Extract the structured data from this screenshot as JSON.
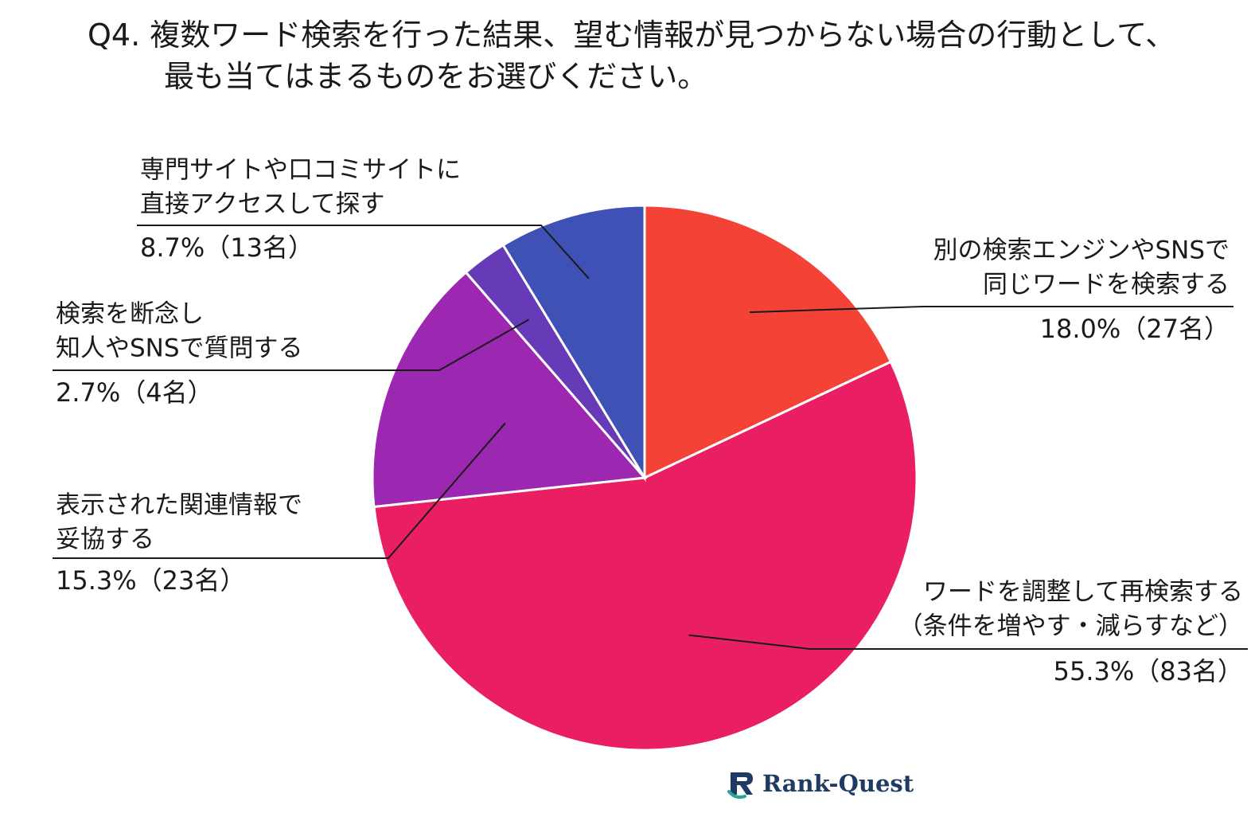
{
  "title": {
    "line1": "Q4. 複数ワード検索を行った結果、望む情報が見つからない場合の行動として、",
    "line2": "最も当てはまるものをお選びください。"
  },
  "chart_data": {
    "type": "pie",
    "title": "Q4. 複数ワード検索を行った結果、望む情報が見つからない場合の行動として、最も当てはまるものをお選びください。",
    "slices": [
      {
        "label_lines": [
          "別の検索エンジンやSNSで",
          "同じワードを検索する"
        ],
        "percent": 18.0,
        "count": 27,
        "value_text": "18.0%（27名）",
        "color": "#f44336"
      },
      {
        "label_lines": [
          "ワードを調整して再検索する",
          "（条件を増やす・減らすなど）"
        ],
        "percent": 55.3,
        "count": 83,
        "value_text": "55.3%（83名）",
        "color": "#e91e63"
      },
      {
        "label_lines": [
          "表示された関連情報で",
          "妥協する"
        ],
        "percent": 15.3,
        "count": 23,
        "value_text": "15.3%（23名）",
        "color": "#9c27b0"
      },
      {
        "label_lines": [
          "検索を断念し",
          "知人やSNSで質問する"
        ],
        "percent": 2.7,
        "count": 4,
        "value_text": "2.7%（4名）",
        "color": "#673ab7"
      },
      {
        "label_lines": [
          "専門サイトや口コミサイトに",
          "直接アクセスして探す"
        ],
        "percent": 8.7,
        "count": 13,
        "value_text": "8.7%（13名）",
        "color": "#3f51b5"
      }
    ],
    "start_angle_deg": 0,
    "direction": "clockwise",
    "legend": "none"
  },
  "logo": {
    "text": "Rank-Quest",
    "icon": "rank-quest-logo-icon",
    "color": "#1f3b63",
    "accent": "#26a69a"
  }
}
